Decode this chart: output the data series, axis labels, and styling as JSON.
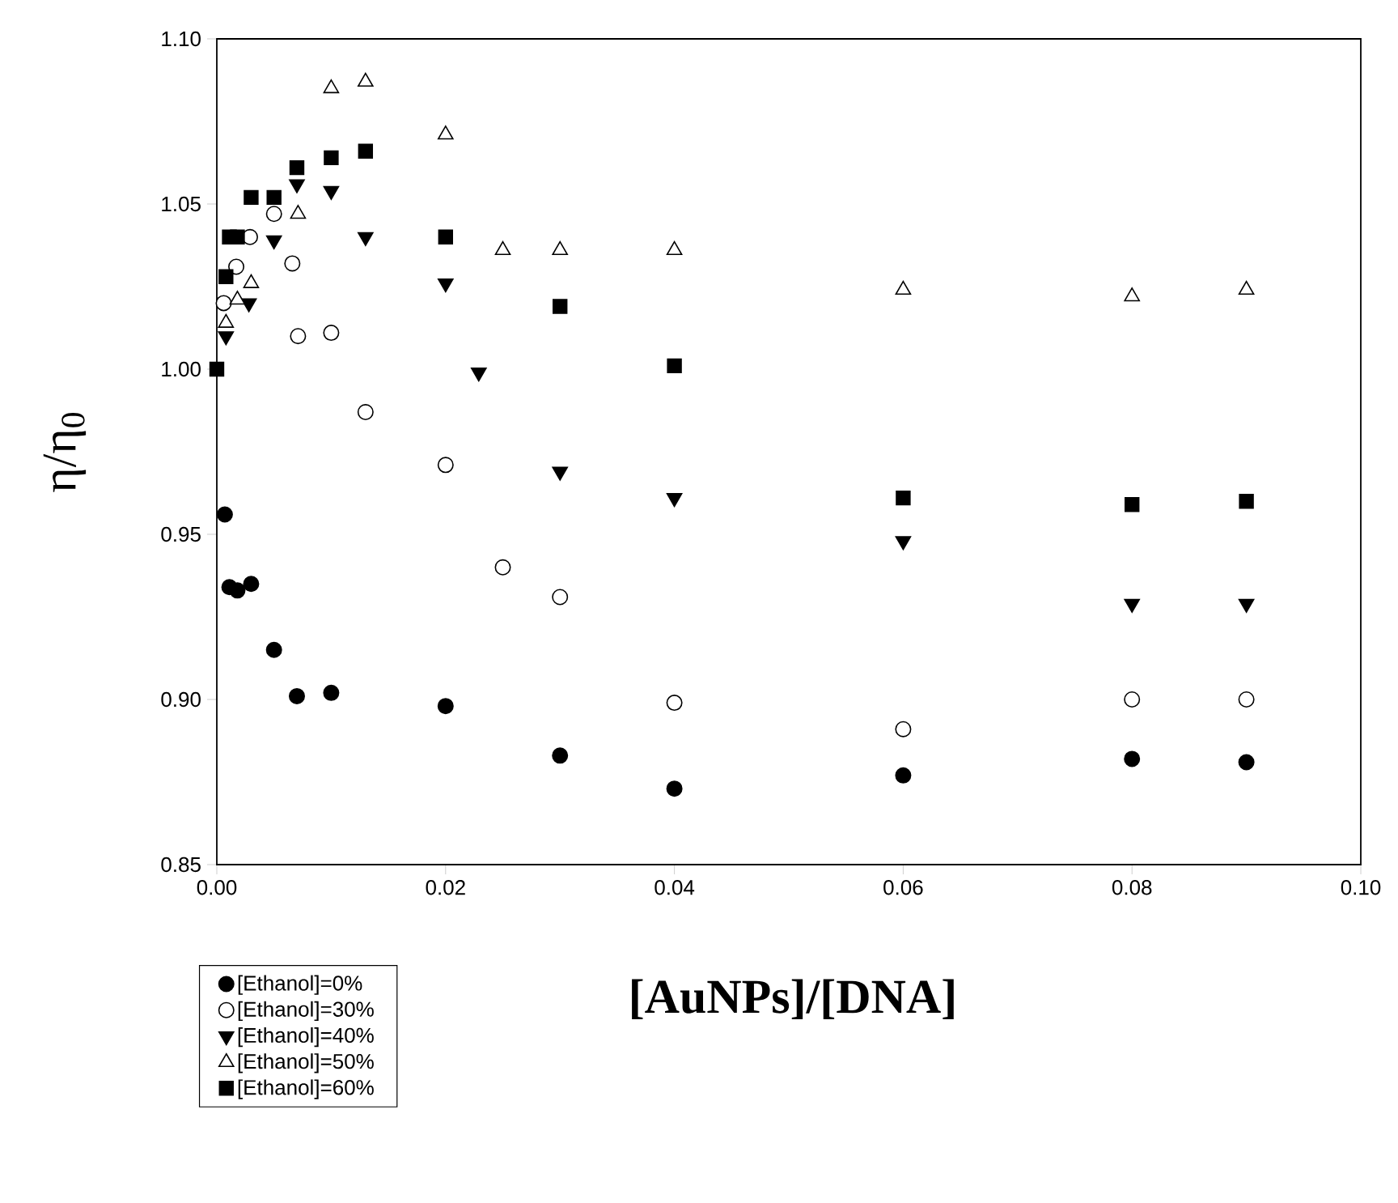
{
  "chart_data": {
    "type": "scatter",
    "xlabel": "[AuNPs]/[DNA]",
    "ylabel": "η/η$_{0}$",
    "xlim": [
      0,
      0.1
    ],
    "ylim": [
      0.85,
      1.1
    ],
    "xticks": [
      {
        "value": 0,
        "label": "0.00"
      },
      {
        "value": 0.02,
        "label": "0.02"
      },
      {
        "value": 0.04,
        "label": "0.04"
      },
      {
        "value": 0.06,
        "label": "0.06"
      },
      {
        "value": 0.08,
        "label": "0.08"
      },
      {
        "value": 0.1,
        "label": "0.10"
      }
    ],
    "yticks": [
      {
        "value": 0.85,
        "label": "0.85"
      },
      {
        "value": 0.9,
        "label": "0.90"
      },
      {
        "value": 0.95,
        "label": "0.95"
      },
      {
        "value": 1.0,
        "label": "1.00"
      },
      {
        "value": 1.05,
        "label": "1.05"
      },
      {
        "value": 1.1,
        "label": "1.10"
      }
    ],
    "grid": false,
    "legend": "bottom left",
    "series": [
      {
        "name": "[Ethanol]=0%",
        "color": "#000000",
        "marker": "circle",
        "x": [
          0.0007,
          0.0011,
          0.0018,
          0.003,
          0.005,
          0.007,
          0.01,
          0.02,
          0.03,
          0.04,
          0.06,
          0.08,
          0.09
        ],
        "values": [
          0.956,
          0.934,
          0.933,
          0.935,
          0.915,
          0.901,
          0.902,
          0.898,
          0.883,
          0.873,
          0.877,
          0.882,
          0.881
        ]
      },
      {
        "name": "[Ethanol]=30%",
        "color": "#ffffff",
        "marker": "circle",
        "x": [
          0.0006,
          0.0017,
          0.0029,
          0.005,
          0.0066,
          0.0071,
          0.01,
          0.013,
          0.02,
          0.025,
          0.03,
          0.04,
          0.06,
          0.08,
          0.09
        ],
        "values": [
          1.02,
          1.031,
          1.04,
          1.047,
          1.032,
          1.01,
          1.011,
          0.987,
          0.971,
          0.94,
          0.931,
          0.899,
          0.891,
          0.9,
          0.9
        ]
      },
      {
        "name": "[Ethanol]=40%",
        "color": "#000000",
        "marker": "triangle-down",
        "x": [
          0.0008,
          0.0028,
          0.005,
          0.007,
          0.01,
          0.013,
          0.02,
          0.0229,
          0.03,
          0.04,
          0.06,
          0.08,
          0.09
        ],
        "values": [
          1.01,
          1.02,
          1.039,
          1.056,
          1.054,
          1.04,
          1.026,
          0.999,
          0.969,
          0.961,
          0.948,
          0.929,
          0.929
        ]
      },
      {
        "name": "[Ethanol]=50%",
        "color": "#ffffff",
        "marker": "triangle",
        "x": [
          0.0008,
          0.0018,
          0.003,
          0.0071,
          0.01,
          0.013,
          0.02,
          0.025,
          0.03,
          0.04,
          0.06,
          0.08,
          0.09
        ],
        "values": [
          1.014,
          1.021,
          1.026,
          1.047,
          1.085,
          1.087,
          1.071,
          1.036,
          1.036,
          1.036,
          1.024,
          1.022,
          1.024
        ]
      },
      {
        "name": "[Ethanol]=60%",
        "color": "#000000",
        "marker": "square",
        "x": [
          0,
          0.0008,
          0.0011,
          0.0018,
          0.003,
          0.005,
          0.007,
          0.01,
          0.013,
          0.02,
          0.03,
          0.04,
          0.06,
          0.08,
          0.09
        ],
        "values": [
          1.0,
          1.028,
          1.04,
          1.04,
          1.052,
          1.052,
          1.061,
          1.064,
          1.066,
          1.04,
          1.019,
          1.001,
          0.961,
          0.959,
          0.96
        ]
      }
    ]
  }
}
